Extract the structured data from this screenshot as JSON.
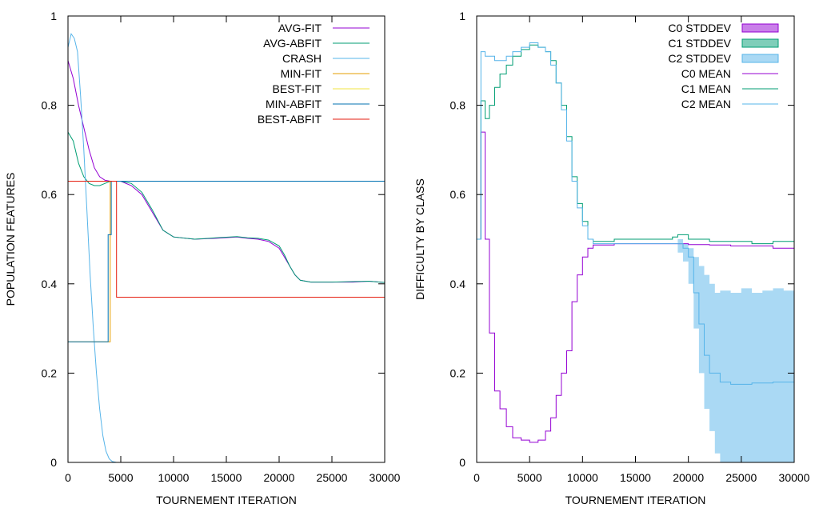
{
  "chart_data": [
    {
      "type": "line",
      "title": "",
      "xlabel": "TOURNEMENT ITERATION",
      "ylabel": "POPULATION FEATURES",
      "xlim": [
        0,
        30000
      ],
      "ylim": [
        0,
        1
      ],
      "xticks": [
        "0",
        "5000",
        "10000",
        "15000",
        "20000",
        "25000",
        "30000"
      ],
      "yticks": [
        "0",
        "0.2",
        "0.4",
        "0.6",
        "0.8",
        "1"
      ],
      "grid": false,
      "legend_position": "top-right",
      "series": [
        {
          "name": "AVG-FIT",
          "color": "#9400d3",
          "style": "line",
          "x": [
            0,
            500,
            1000,
            1500,
            2000,
            2500,
            3000,
            3500,
            4000,
            5000,
            6000,
            7000,
            8000,
            9000,
            10000,
            12000,
            14000,
            16000,
            17000,
            18000,
            19000,
            20000,
            20500,
            21000,
            21500,
            22000,
            23000,
            25000,
            27000,
            28500,
            30000
          ],
          "y": [
            0.9,
            0.86,
            0.8,
            0.75,
            0.7,
            0.66,
            0.64,
            0.632,
            0.63,
            0.63,
            0.62,
            0.6,
            0.56,
            0.52,
            0.505,
            0.5,
            0.502,
            0.505,
            0.502,
            0.5,
            0.495,
            0.48,
            0.46,
            0.44,
            0.42,
            0.408,
            0.404,
            0.404,
            0.404,
            0.406,
            0.403
          ]
        },
        {
          "name": "AVG-ABFIT",
          "color": "#009e73",
          "style": "line",
          "x": [
            0,
            500,
            1000,
            1500,
            2000,
            2500,
            3000,
            3500,
            4000,
            5000,
            6000,
            7000,
            8000,
            9000,
            10000,
            12000,
            14000,
            16000,
            17000,
            18000,
            19000,
            20000,
            20500,
            21000,
            21500,
            22000,
            23000,
            25000,
            27000,
            28500,
            30000
          ],
          "y": [
            0.74,
            0.72,
            0.67,
            0.64,
            0.625,
            0.62,
            0.62,
            0.625,
            0.63,
            0.63,
            0.625,
            0.605,
            0.565,
            0.52,
            0.505,
            0.5,
            0.503,
            0.506,
            0.503,
            0.502,
            0.498,
            0.485,
            0.465,
            0.44,
            0.42,
            0.408,
            0.404,
            0.404,
            0.405,
            0.406,
            0.403
          ]
        },
        {
          "name": "CRASH",
          "color": "#56b4e9",
          "style": "line",
          "x": [
            0,
            300,
            600,
            900,
            1200,
            1500,
            1800,
            2100,
            2400,
            2700,
            3000,
            3300,
            3600,
            3900,
            4200,
            4600,
            10000,
            20000,
            30000
          ],
          "y": [
            0.93,
            0.96,
            0.95,
            0.92,
            0.82,
            0.7,
            0.56,
            0.42,
            0.3,
            0.2,
            0.12,
            0.06,
            0.025,
            0.008,
            0.002,
            0.0,
            0.0,
            0.0,
            0.0
          ]
        },
        {
          "name": "MIN-FIT",
          "color": "#e69f00",
          "style": "step",
          "x": [
            0,
            1000,
            3500,
            4000,
            30000
          ],
          "y": [
            0.27,
            0.27,
            0.27,
            0.63,
            0.4
          ]
        },
        {
          "name": "BEST-FIT",
          "color": "#f0e442",
          "style": "step",
          "x": [
            0,
            30000
          ],
          "y": [
            0.63,
            0.63
          ]
        },
        {
          "name": "MIN-ABFIT",
          "color": "#0072b2",
          "style": "step",
          "x": [
            0,
            3800,
            3800,
            4100,
            4100,
            30000
          ],
          "y": [
            0.27,
            0.27,
            0.51,
            0.51,
            0.63,
            0.4
          ]
        },
        {
          "name": "BEST-ABFIT",
          "color": "#e51e10",
          "style": "step",
          "x": [
            0,
            4600,
            4600,
            30000
          ],
          "y": [
            0.63,
            0.63,
            0.37,
            0.37
          ]
        }
      ]
    },
    {
      "type": "line",
      "title": "",
      "xlabel": "TOURNEMENT ITERATION",
      "ylabel": "DIFFICULTY BY CLASS",
      "xlim": [
        0,
        30000
      ],
      "ylim": [
        0,
        1
      ],
      "xticks": [
        "0",
        "5000",
        "10000",
        "15000",
        "20000",
        "25000",
        "30000"
      ],
      "yticks": [
        "0",
        "0.2",
        "0.4",
        "0.6",
        "0.8",
        "1"
      ],
      "grid": false,
      "legend_position": "top-right",
      "bands": [
        {
          "name": "C0 STDDEV",
          "color": "#9400d3",
          "x": [
            0,
            30000
          ],
          "lower": [
            0.0,
            0.0
          ],
          "upper": [
            0.0,
            0.0
          ]
        },
        {
          "name": "C1 STDDEV",
          "color": "#009e73",
          "x": [
            0,
            30000
          ],
          "lower": [
            0.0,
            0.0
          ],
          "upper": [
            0.0,
            0.0
          ]
        },
        {
          "name": "C2 STDDEV",
          "color": "#56b4e9",
          "x": [
            19000,
            19500,
            20000,
            20500,
            21000,
            21500,
            22000,
            22500,
            23000,
            24000,
            25000,
            26000,
            27000,
            28000,
            29000,
            30000
          ],
          "lower": [
            0.47,
            0.45,
            0.4,
            0.3,
            0.2,
            0.12,
            0.07,
            0.02,
            0.0,
            0.0,
            0.0,
            0.0,
            0.0,
            0.0,
            0.0,
            0.0
          ],
          "upper": [
            0.5,
            0.49,
            0.48,
            0.46,
            0.44,
            0.42,
            0.4,
            0.38,
            0.385,
            0.38,
            0.39,
            0.38,
            0.385,
            0.39,
            0.385,
            0.39
          ]
        }
      ],
      "series": [
        {
          "name": "C0 MEAN",
          "color": "#9400d3",
          "style": "step",
          "x": [
            0,
            400,
            800,
            1200,
            1700,
            2200,
            2800,
            3400,
            4200,
            5000,
            5800,
            6500,
            7000,
            7500,
            8000,
            8500,
            9000,
            9500,
            10000,
            10500,
            11000,
            13000,
            15000,
            17000,
            19000,
            20000,
            22000,
            24000,
            26000,
            28000,
            30000
          ],
          "y": [
            0.5,
            0.74,
            0.5,
            0.29,
            0.16,
            0.12,
            0.08,
            0.055,
            0.05,
            0.045,
            0.05,
            0.07,
            0.1,
            0.15,
            0.2,
            0.25,
            0.36,
            0.42,
            0.46,
            0.48,
            0.487,
            0.49,
            0.49,
            0.49,
            0.49,
            0.488,
            0.487,
            0.485,
            0.485,
            0.48,
            0.478
          ]
        },
        {
          "name": "C1 MEAN",
          "color": "#009e73",
          "style": "step",
          "x": [
            0,
            400,
            800,
            1200,
            1700,
            2200,
            2800,
            3400,
            4200,
            5000,
            5800,
            6500,
            7000,
            7500,
            8000,
            8500,
            9000,
            9500,
            10000,
            10500,
            11000,
            13000,
            15000,
            17000,
            18500,
            19000,
            20000,
            22000,
            24000,
            26000,
            28000,
            30000
          ],
          "y": [
            0.5,
            0.81,
            0.77,
            0.8,
            0.84,
            0.87,
            0.89,
            0.91,
            0.925,
            0.935,
            0.93,
            0.92,
            0.9,
            0.85,
            0.8,
            0.73,
            0.64,
            0.58,
            0.54,
            0.5,
            0.495,
            0.5,
            0.5,
            0.5,
            0.505,
            0.51,
            0.5,
            0.495,
            0.495,
            0.49,
            0.495,
            0.497
          ]
        },
        {
          "name": "C2 MEAN",
          "color": "#56b4e9",
          "style": "step",
          "x": [
            0,
            400,
            800,
            1200,
            1700,
            2200,
            2800,
            3400,
            4200,
            5000,
            5800,
            6500,
            7000,
            7500,
            8000,
            8500,
            9000,
            9500,
            10000,
            10500,
            11000,
            13000,
            15000,
            17000,
            19000,
            19500,
            20000,
            20500,
            21000,
            21500,
            22000,
            23000,
            24000,
            26000,
            28000,
            30000
          ],
          "y": [
            0.5,
            0.92,
            0.91,
            0.91,
            0.9,
            0.9,
            0.91,
            0.92,
            0.93,
            0.94,
            0.93,
            0.92,
            0.89,
            0.85,
            0.79,
            0.72,
            0.63,
            0.57,
            0.53,
            0.5,
            0.49,
            0.49,
            0.49,
            0.49,
            0.49,
            0.48,
            0.46,
            0.38,
            0.31,
            0.24,
            0.2,
            0.18,
            0.175,
            0.178,
            0.18,
            0.185
          ]
        }
      ]
    }
  ]
}
